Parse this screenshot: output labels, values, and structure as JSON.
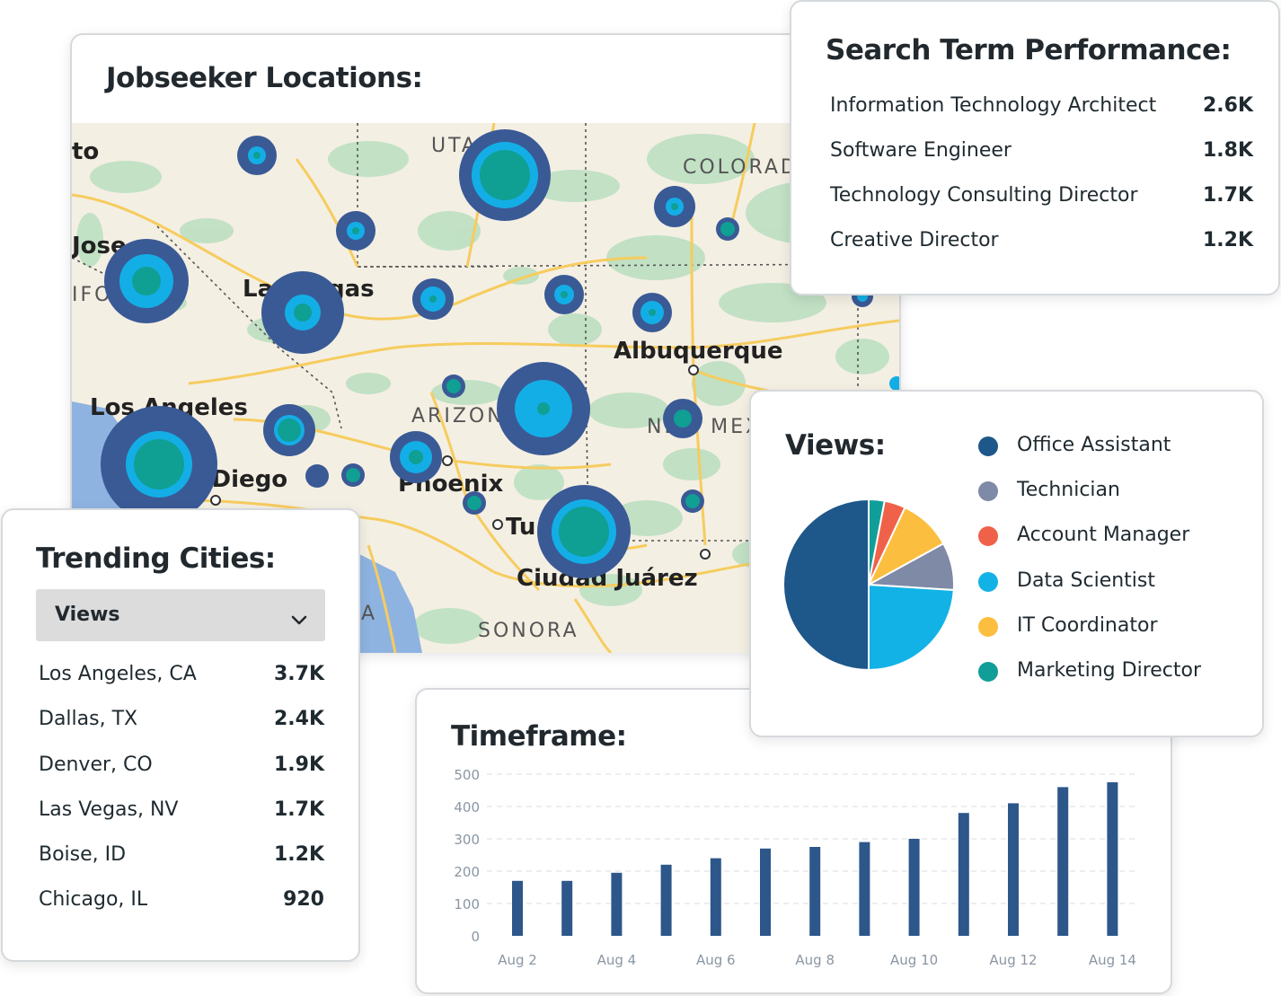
{
  "map_card": {
    "title": "Jobseeker Locations:",
    "labels": {
      "to": "to",
      "jose": "Jose",
      "ifo": "IFO",
      "utah": "UTAH",
      "colorado": "COLORAD",
      "las_vegas": "Las Vegas",
      "albuquerque": "Albuquerque",
      "los_angeles": "Los Angeles",
      "arizona": "ARIZONA",
      "new_mexico": "NEW MEX",
      "san_diego": "n Diego",
      "phoenix": "Phoenix",
      "tucson": "Tu",
      "ciudad_juarez": "Ciudad Juárez",
      "sonora": "SONORA",
      "a": "A"
    },
    "colors": {
      "land": "#f4efe3",
      "park": "#bfe0c3",
      "water": "#8fb3e0",
      "road": "#f6cc5e",
      "bubble_outer": "#3a5a96",
      "bubble_mid": "#14aee6",
      "bubble_core": "#0f9f93"
    }
  },
  "search_card": {
    "title": "Search Term Performance:",
    "rows": [
      {
        "label": "Information Technology Architect",
        "value": "2.6K"
      },
      {
        "label": "Software Engineer",
        "value": "1.8K"
      },
      {
        "label": "Technology Consulting Director",
        "value": "1.7K"
      },
      {
        "label": "Creative Director",
        "value": "1.2K"
      }
    ]
  },
  "cities_card": {
    "title": "Trending Cities:",
    "dropdown": {
      "selected": "Views",
      "icon": "chevron-down-icon"
    },
    "rows": [
      {
        "label": "Los Angeles, CA",
        "value": "3.7K"
      },
      {
        "label": "Dallas, TX",
        "value": "2.4K"
      },
      {
        "label": "Denver, CO",
        "value": "1.9K"
      },
      {
        "label": "Las Vegas, NV",
        "value": "1.7K"
      },
      {
        "label": "Boise, ID",
        "value": "1.2K"
      },
      {
        "label": "Chicago, IL",
        "value": "920"
      }
    ]
  },
  "views_card": {
    "title": "Views:",
    "legend": [
      {
        "label": "Office Assistant",
        "color": "#1e578a"
      },
      {
        "label": "Technician",
        "color": "#7e8aa6"
      },
      {
        "label": "Account Manager",
        "color": "#ef6249"
      },
      {
        "label": "Data Scientist",
        "color": "#13b2e6"
      },
      {
        "label": "IT Coordinator",
        "color": "#fbbe3f"
      },
      {
        "label": "Marketing Director",
        "color": "#119e98"
      }
    ]
  },
  "time_card": {
    "title": "Timeframe:"
  },
  "chart_data": [
    {
      "type": "pie",
      "title": "Views:",
      "categories": [
        "Marketing Director",
        "Account Manager",
        "IT Coordinator",
        "Technician",
        "Data Scientist",
        "Office Assistant"
      ],
      "values": [
        3,
        4,
        10,
        9,
        24,
        50
      ],
      "colors": [
        "#119e98",
        "#ef6249",
        "#fbbe3f",
        "#7e8aa6",
        "#13b2e6",
        "#1e578a"
      ]
    },
    {
      "type": "bar",
      "title": "Timeframe:",
      "categories": [
        "Aug 2",
        "Aug 3",
        "Aug 4",
        "Aug 5",
        "Aug 6",
        "Aug 7",
        "Aug 8",
        "Aug 9",
        "Aug 10",
        "Aug 11",
        "Aug 12",
        "Aug 13",
        "Aug 14"
      ],
      "tick_labels": [
        "Aug 2",
        "Aug 4",
        "Aug 6",
        "Aug 8",
        "Aug 10",
        "Aug 12",
        "Aug 14"
      ],
      "values": [
        170,
        170,
        195,
        220,
        240,
        270,
        275,
        290,
        300,
        380,
        410,
        460,
        475
      ],
      "ylim": [
        0,
        500
      ],
      "yticks": [
        0,
        100,
        200,
        300,
        400,
        500
      ],
      "grid": true,
      "bar_color": "#2d578a"
    }
  ]
}
